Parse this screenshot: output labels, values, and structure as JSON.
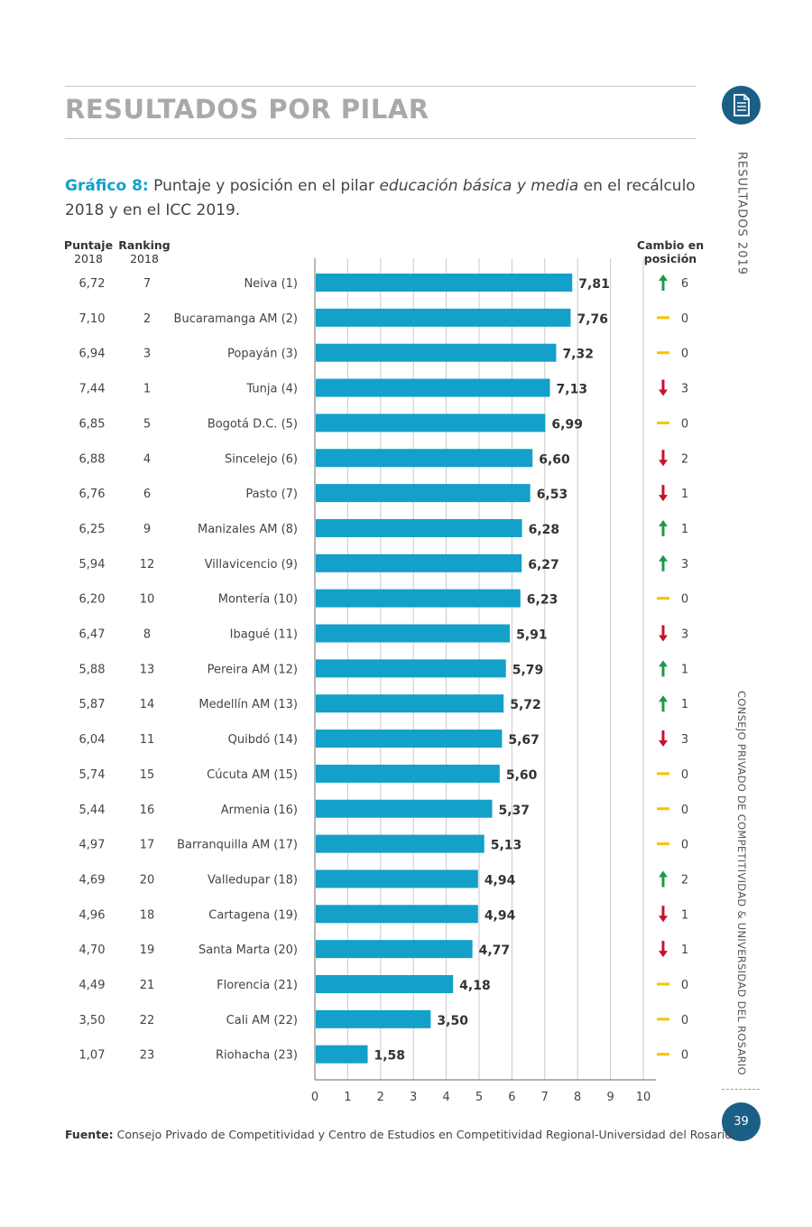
{
  "section_title": "RESULTADOS POR PILAR",
  "side_text_top": "RESULTADOS 2019",
  "side_text_bottom": "CONSEJO PRIVADO DE COMPETITIVIDAD & UNIVERSIDAD DEL ROSARIO",
  "page_number": "39",
  "caption": {
    "label": "Gráfico 8:",
    "text_before": " Puntaje y posición en el pilar ",
    "text_italic": "educación básica y media",
    "text_after": " en el recálculo 2018 y en el ICC 2019."
  },
  "headers": {
    "score_bold": "Puntaje",
    "score_year": "2018",
    "rank_bold": "Ranking",
    "rank_year": "2018",
    "change_line1": "Cambio en",
    "change_line2": "posición"
  },
  "source": {
    "label": "Fuente:",
    "text": " Consejo Privado de Competitividad y Centro de Estudios en Competitividad Regional-Universidad del Rosario."
  },
  "colors": {
    "bar": "#13a0c9",
    "up": "#1a9b4a",
    "down": "#c8102e",
    "same": "#f5c400"
  },
  "chart_data": {
    "type": "bar",
    "orientation": "horizontal",
    "xlim": [
      0,
      10
    ],
    "xticks": [
      "0",
      "1",
      "2",
      "3",
      "4",
      "5",
      "6",
      "7",
      "8",
      "9",
      "10"
    ],
    "grid": true,
    "rows": [
      {
        "city": "Neiva (1)",
        "value": 7.81,
        "label": "7,81",
        "score2018": "6,72",
        "rank2018": "7",
        "change": "up",
        "change_value": "6"
      },
      {
        "city": "Bucaramanga AM (2)",
        "value": 7.76,
        "label": "7,76",
        "score2018": "7,10",
        "rank2018": "2",
        "change": "same",
        "change_value": "0"
      },
      {
        "city": "Popayán (3)",
        "value": 7.32,
        "label": "7,32",
        "score2018": "6,94",
        "rank2018": "3",
        "change": "same",
        "change_value": "0"
      },
      {
        "city": "Tunja (4)",
        "value": 7.13,
        "label": "7,13",
        "score2018": "7,44",
        "rank2018": "1",
        "change": "down",
        "change_value": "3"
      },
      {
        "city": "Bogotá D.C. (5)",
        "value": 6.99,
        "label": "6,99",
        "score2018": "6,85",
        "rank2018": "5",
        "change": "same",
        "change_value": "0"
      },
      {
        "city": "Sincelejo (6)",
        "value": 6.6,
        "label": "6,60",
        "score2018": "6,88",
        "rank2018": "4",
        "change": "down",
        "change_value": "2"
      },
      {
        "city": "Pasto (7)",
        "value": 6.53,
        "label": "6,53",
        "score2018": "6,76",
        "rank2018": "6",
        "change": "down",
        "change_value": "1"
      },
      {
        "city": "Manizales AM (8)",
        "value": 6.28,
        "label": "6,28",
        "score2018": "6,25",
        "rank2018": "9",
        "change": "up",
        "change_value": "1"
      },
      {
        "city": "Villavicencio (9)",
        "value": 6.27,
        "label": "6,27",
        "score2018": "5,94",
        "rank2018": "12",
        "change": "up",
        "change_value": "3"
      },
      {
        "city": "Montería (10)",
        "value": 6.23,
        "label": "6,23",
        "score2018": "6,20",
        "rank2018": "10",
        "change": "same",
        "change_value": "0"
      },
      {
        "city": "Ibagué (11)",
        "value": 5.91,
        "label": "5,91",
        "score2018": "6,47",
        "rank2018": "8",
        "change": "down",
        "change_value": "3"
      },
      {
        "city": "Pereira AM (12)",
        "value": 5.79,
        "label": "5,79",
        "score2018": "5,88",
        "rank2018": "13",
        "change": "up",
        "change_value": "1"
      },
      {
        "city": "Medellín AM (13)",
        "value": 5.72,
        "label": "5,72",
        "score2018": "5,87",
        "rank2018": "14",
        "change": "up",
        "change_value": "1"
      },
      {
        "city": "Quibdó (14)",
        "value": 5.67,
        "label": "5,67",
        "score2018": "6,04",
        "rank2018": "11",
        "change": "down",
        "change_value": "3"
      },
      {
        "city": "Cúcuta AM (15)",
        "value": 5.6,
        "label": "5,60",
        "score2018": "5,74",
        "rank2018": "15",
        "change": "same",
        "change_value": "0"
      },
      {
        "city": "Armenia (16)",
        "value": 5.37,
        "label": "5,37",
        "score2018": "5,44",
        "rank2018": "16",
        "change": "same",
        "change_value": "0"
      },
      {
        "city": "Barranquilla AM (17)",
        "value": 5.13,
        "label": "5,13",
        "score2018": "4,97",
        "rank2018": "17",
        "change": "same",
        "change_value": "0"
      },
      {
        "city": "Valledupar (18)",
        "value": 4.94,
        "label": "4,94",
        "score2018": "4,69",
        "rank2018": "20",
        "change": "up",
        "change_value": "2"
      },
      {
        "city": "Cartagena (19)",
        "value": 4.94,
        "label": "4,94",
        "score2018": "4,96",
        "rank2018": "18",
        "change": "down",
        "change_value": "1"
      },
      {
        "city": "Santa Marta (20)",
        "value": 4.77,
        "label": "4,77",
        "score2018": "4,70",
        "rank2018": "19",
        "change": "down",
        "change_value": "1"
      },
      {
        "city": "Florencia (21)",
        "value": 4.18,
        "label": "4,18",
        "score2018": "4,49",
        "rank2018": "21",
        "change": "same",
        "change_value": "0"
      },
      {
        "city": "Cali AM (22)",
        "value": 3.5,
        "label": "3,50",
        "score2018": "3,50",
        "rank2018": "22",
        "change": "same",
        "change_value": "0"
      },
      {
        "city": "Riohacha (23)",
        "value": 1.58,
        "label": "1,58",
        "score2018": "1,07",
        "rank2018": "23",
        "change": "same",
        "change_value": "0"
      }
    ]
  }
}
